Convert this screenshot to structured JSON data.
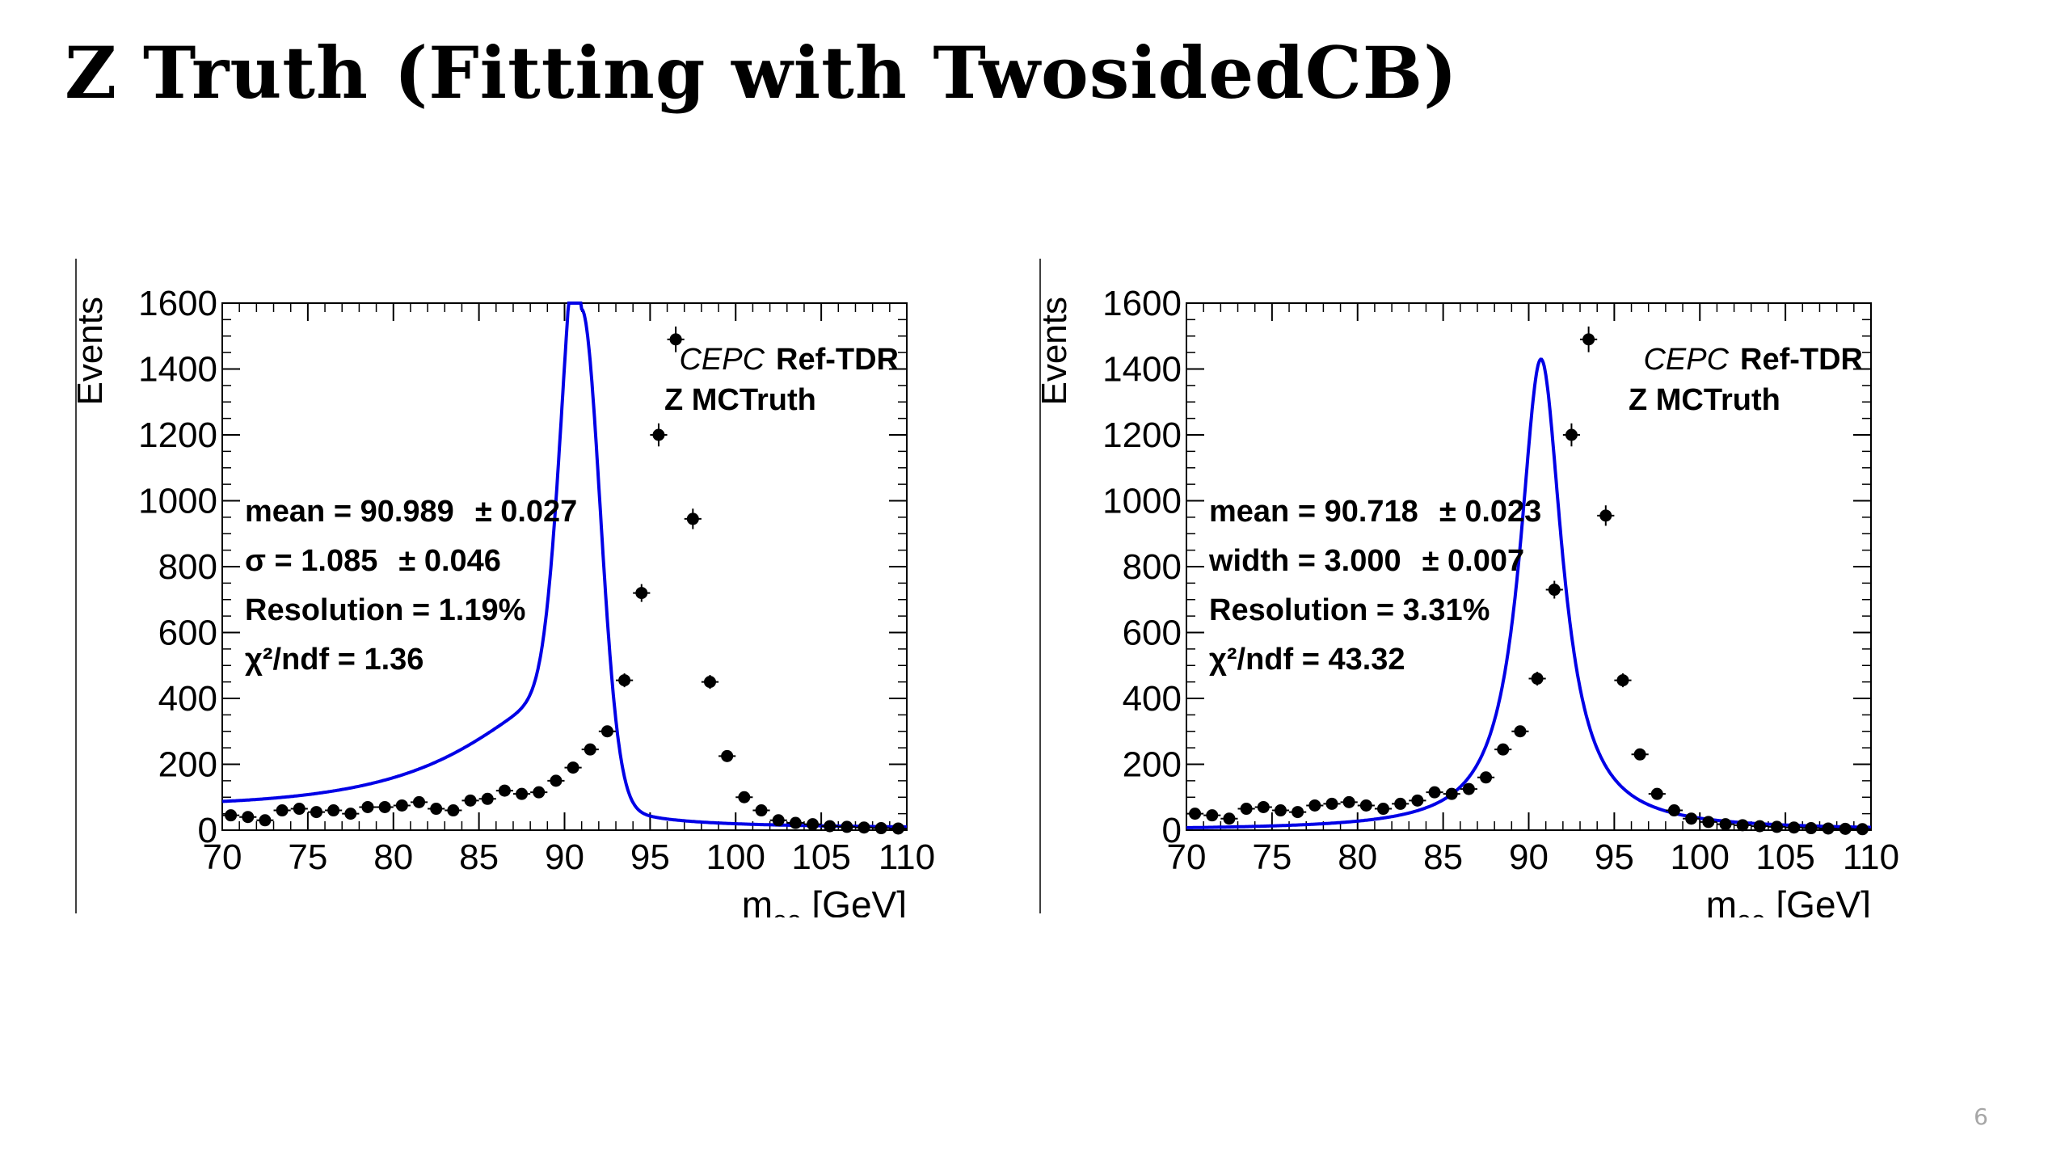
{
  "slide": {
    "title": "Z Truth (Fitting with TwosidedCB)",
    "page_number": "6"
  },
  "chart_data": [
    {
      "type": "scatter",
      "title": "",
      "xlabel": "m",
      "xlabel_sub": "ee",
      "xlabel_unit": " [GeV]",
      "ylabel": "Events",
      "xlim": [
        70,
        110
      ],
      "ylim": [
        0,
        1600
      ],
      "xticks": [
        70,
        75,
        80,
        85,
        90,
        95,
        100,
        105,
        110
      ],
      "yticks": [
        0,
        200,
        400,
        600,
        800,
        1000,
        1200,
        1400,
        1600
      ],
      "grid": false,
      "header": {
        "experiment": "CEPC",
        "tag": "Ref-TDR",
        "sample": "Z MCTruth"
      },
      "stats": [
        {
          "label": "mean = 90.989",
          "error": "± 0.027"
        },
        {
          "label": "σ = 1.085",
          "error": "± 0.046"
        },
        {
          "label": "Resolution = 1.19%",
          "error": ""
        },
        {
          "label": "χ²/ndf = 1.36",
          "error": ""
        }
      ],
      "series": [
        {
          "kind": "data",
          "x": [
            70.5,
            71.5,
            72.5,
            73.5,
            74.5,
            75.5,
            76.5,
            77.5,
            78.5,
            79.5,
            80.5,
            81.5,
            82.5,
            83.5,
            84.5,
            85.5,
            86.5,
            87.5,
            88.5,
            89.5,
            90.5,
            91.5,
            92.5,
            93.5,
            94.5,
            95.5,
            96.5,
            97.5,
            98.5,
            99.5,
            100.5,
            101.5,
            102.5,
            103.5,
            104.5,
            105.5,
            106.5,
            107.5,
            108.5,
            109.5
          ],
          "y": [
            45,
            40,
            30,
            60,
            65,
            55,
            60,
            50,
            70,
            70,
            75,
            85,
            65,
            60,
            90,
            95,
            120,
            110,
            115,
            150,
            190,
            245,
            300,
            455,
            720,
            1200,
            1490,
            945,
            450,
            225,
            100,
            60,
            30,
            22,
            18,
            12,
            10,
            8,
            6,
            5
          ],
          "yerr": [
            7,
            6,
            6,
            8,
            8,
            7,
            8,
            7,
            8,
            8,
            9,
            9,
            8,
            8,
            9,
            10,
            11,
            10,
            11,
            12,
            14,
            16,
            17,
            21,
            27,
            35,
            39,
            31,
            21,
            15,
            10,
            8,
            6,
            5,
            4,
            4,
            3,
            3,
            3,
            2
          ]
        },
        {
          "kind": "fit",
          "model": "TwosidedCB",
          "color": "#0000e6",
          "mean": 90.989,
          "sigma": 1.085,
          "amplitude": 1490,
          "tail_left_amplitude": 0.28,
          "tail_left_width": 7.5,
          "tail_right_amplitude": 0.05,
          "tail_right_width": 3.0,
          "baseline": 40,
          "baseline_decay": 25
        }
      ]
    },
    {
      "type": "scatter",
      "title": "",
      "xlabel": "m",
      "xlabel_sub": "ee",
      "xlabel_unit": " [GeV]",
      "ylabel": "Events",
      "xlim": [
        70,
        110
      ],
      "ylim": [
        0,
        1600
      ],
      "xticks": [
        70,
        75,
        80,
        85,
        90,
        95,
        100,
        105,
        110
      ],
      "yticks": [
        0,
        200,
        400,
        600,
        800,
        1000,
        1200,
        1400,
        1600
      ],
      "grid": false,
      "header": {
        "experiment": "CEPC",
        "tag": "Ref-TDR",
        "sample": "Z MCTruth"
      },
      "stats": [
        {
          "label": "mean = 90.718",
          "error": "± 0.023"
        },
        {
          "label": "width = 3.000",
          "error": "± 0.007"
        },
        {
          "label": "Resolution = 3.31%",
          "error": ""
        },
        {
          "label": "χ²/ndf = 43.32",
          "error": ""
        }
      ],
      "series": [
        {
          "kind": "data",
          "x": [
            70.5,
            71.5,
            72.5,
            73.5,
            74.5,
            75.5,
            76.5,
            77.5,
            78.5,
            79.5,
            80.5,
            81.5,
            82.5,
            83.5,
            84.5,
            85.5,
            86.5,
            87.5,
            88.5,
            89.5,
            90.5,
            91.5,
            92.5,
            93.5,
            94.5,
            95.5,
            96.5,
            97.5,
            98.5,
            99.5,
            100.5,
            101.5,
            102.5,
            103.5,
            104.5,
            105.5,
            106.5,
            107.5,
            108.5,
            109.5
          ],
          "y": [
            50,
            45,
            35,
            65,
            70,
            60,
            55,
            75,
            80,
            85,
            75,
            65,
            80,
            90,
            115,
            110,
            125,
            160,
            245,
            300,
            460,
            730,
            1200,
            1490,
            955,
            455,
            230,
            110,
            60,
            35,
            25,
            18,
            15,
            12,
            10,
            8,
            6,
            5,
            4,
            3
          ],
          "yerr": [
            7,
            7,
            6,
            8,
            8,
            8,
            7,
            9,
            9,
            9,
            9,
            8,
            9,
            10,
            11,
            11,
            11,
            13,
            16,
            17,
            21,
            27,
            35,
            39,
            31,
            21,
            15,
            11,
            8,
            6,
            5,
            4,
            4,
            3,
            3,
            3,
            2,
            2,
            2,
            2
          ]
        },
        {
          "kind": "fit",
          "model": "TwosidedCB",
          "color": "#0000e6",
          "mean": 90.718,
          "sigma": 1.5,
          "amplitude": 1430,
          "tail_left_amplitude": 0,
          "tail_left_width": 1,
          "tail_right_amplitude": 0,
          "tail_right_width": 1,
          "baseline": 0,
          "baseline_decay": 25
        }
      ]
    }
  ]
}
